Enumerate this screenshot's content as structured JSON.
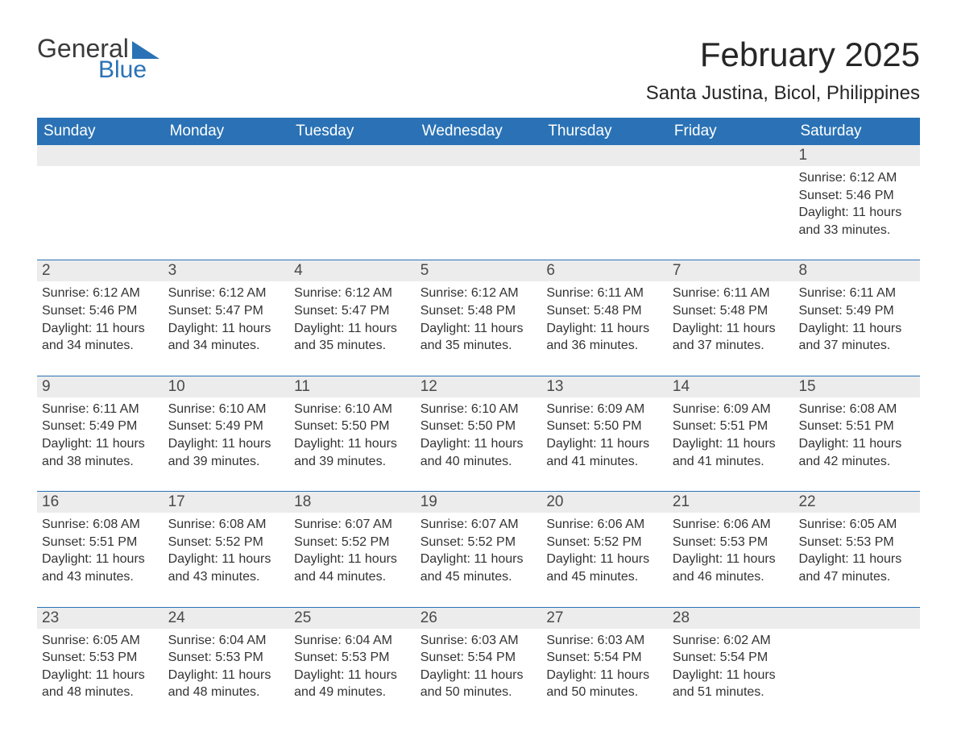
{
  "brand": {
    "word1": "General",
    "word2": "Blue"
  },
  "title": "February 2025",
  "location": "Santa Justina, Bicol, Philippines",
  "colors": {
    "header_bg": "#2a72b5",
    "header_text": "#ffffff",
    "daynum_bg": "#ececec",
    "text": "#333333",
    "page_bg": "#ffffff",
    "rule": "#2a72b5",
    "logo_blue": "#2a72b5",
    "logo_gray": "#3a3a3a"
  },
  "typography": {
    "title_fontsize": 42,
    "location_fontsize": 24,
    "dow_fontsize": 19,
    "daynum_fontsize": 19,
    "body_fontsize": 16,
    "logo_fontsize": 32,
    "font_family": "Arial"
  },
  "dow": [
    "Sunday",
    "Monday",
    "Tuesday",
    "Wednesday",
    "Thursday",
    "Friday",
    "Saturday"
  ],
  "labels": {
    "sunrise": "Sunrise:",
    "sunset": "Sunset:",
    "daylight": "Daylight:"
  },
  "weeks": [
    [
      null,
      null,
      null,
      null,
      null,
      null,
      {
        "n": "1",
        "sunrise": "6:12 AM",
        "sunset": "5:46 PM",
        "daylight1": "11 hours",
        "daylight2": "and 33 minutes."
      }
    ],
    [
      {
        "n": "2",
        "sunrise": "6:12 AM",
        "sunset": "5:46 PM",
        "daylight1": "11 hours",
        "daylight2": "and 34 minutes."
      },
      {
        "n": "3",
        "sunrise": "6:12 AM",
        "sunset": "5:47 PM",
        "daylight1": "11 hours",
        "daylight2": "and 34 minutes."
      },
      {
        "n": "4",
        "sunrise": "6:12 AM",
        "sunset": "5:47 PM",
        "daylight1": "11 hours",
        "daylight2": "and 35 minutes."
      },
      {
        "n": "5",
        "sunrise": "6:12 AM",
        "sunset": "5:48 PM",
        "daylight1": "11 hours",
        "daylight2": "and 35 minutes."
      },
      {
        "n": "6",
        "sunrise": "6:11 AM",
        "sunset": "5:48 PM",
        "daylight1": "11 hours",
        "daylight2": "and 36 minutes."
      },
      {
        "n": "7",
        "sunrise": "6:11 AM",
        "sunset": "5:48 PM",
        "daylight1": "11 hours",
        "daylight2": "and 37 minutes."
      },
      {
        "n": "8",
        "sunrise": "6:11 AM",
        "sunset": "5:49 PM",
        "daylight1": "11 hours",
        "daylight2": "and 37 minutes."
      }
    ],
    [
      {
        "n": "9",
        "sunrise": "6:11 AM",
        "sunset": "5:49 PM",
        "daylight1": "11 hours",
        "daylight2": "and 38 minutes."
      },
      {
        "n": "10",
        "sunrise": "6:10 AM",
        "sunset": "5:49 PM",
        "daylight1": "11 hours",
        "daylight2": "and 39 minutes."
      },
      {
        "n": "11",
        "sunrise": "6:10 AM",
        "sunset": "5:50 PM",
        "daylight1": "11 hours",
        "daylight2": "and 39 minutes."
      },
      {
        "n": "12",
        "sunrise": "6:10 AM",
        "sunset": "5:50 PM",
        "daylight1": "11 hours",
        "daylight2": "and 40 minutes."
      },
      {
        "n": "13",
        "sunrise": "6:09 AM",
        "sunset": "5:50 PM",
        "daylight1": "11 hours",
        "daylight2": "and 41 minutes."
      },
      {
        "n": "14",
        "sunrise": "6:09 AM",
        "sunset": "5:51 PM",
        "daylight1": "11 hours",
        "daylight2": "and 41 minutes."
      },
      {
        "n": "15",
        "sunrise": "6:08 AM",
        "sunset": "5:51 PM",
        "daylight1": "11 hours",
        "daylight2": "and 42 minutes."
      }
    ],
    [
      {
        "n": "16",
        "sunrise": "6:08 AM",
        "sunset": "5:51 PM",
        "daylight1": "11 hours",
        "daylight2": "and 43 minutes."
      },
      {
        "n": "17",
        "sunrise": "6:08 AM",
        "sunset": "5:52 PM",
        "daylight1": "11 hours",
        "daylight2": "and 43 minutes."
      },
      {
        "n": "18",
        "sunrise": "6:07 AM",
        "sunset": "5:52 PM",
        "daylight1": "11 hours",
        "daylight2": "and 44 minutes."
      },
      {
        "n": "19",
        "sunrise": "6:07 AM",
        "sunset": "5:52 PM",
        "daylight1": "11 hours",
        "daylight2": "and 45 minutes."
      },
      {
        "n": "20",
        "sunrise": "6:06 AM",
        "sunset": "5:52 PM",
        "daylight1": "11 hours",
        "daylight2": "and 45 minutes."
      },
      {
        "n": "21",
        "sunrise": "6:06 AM",
        "sunset": "5:53 PM",
        "daylight1": "11 hours",
        "daylight2": "and 46 minutes."
      },
      {
        "n": "22",
        "sunrise": "6:05 AM",
        "sunset": "5:53 PM",
        "daylight1": "11 hours",
        "daylight2": "and 47 minutes."
      }
    ],
    [
      {
        "n": "23",
        "sunrise": "6:05 AM",
        "sunset": "5:53 PM",
        "daylight1": "11 hours",
        "daylight2": "and 48 minutes."
      },
      {
        "n": "24",
        "sunrise": "6:04 AM",
        "sunset": "5:53 PM",
        "daylight1": "11 hours",
        "daylight2": "and 48 minutes."
      },
      {
        "n": "25",
        "sunrise": "6:04 AM",
        "sunset": "5:53 PM",
        "daylight1": "11 hours",
        "daylight2": "and 49 minutes."
      },
      {
        "n": "26",
        "sunrise": "6:03 AM",
        "sunset": "5:54 PM",
        "daylight1": "11 hours",
        "daylight2": "and 50 minutes."
      },
      {
        "n": "27",
        "sunrise": "6:03 AM",
        "sunset": "5:54 PM",
        "daylight1": "11 hours",
        "daylight2": "and 50 minutes."
      },
      {
        "n": "28",
        "sunrise": "6:02 AM",
        "sunset": "5:54 PM",
        "daylight1": "11 hours",
        "daylight2": "and 51 minutes."
      },
      null
    ]
  ]
}
